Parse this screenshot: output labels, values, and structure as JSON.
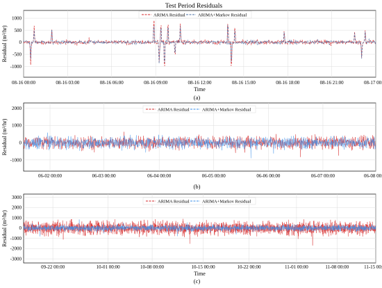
{
  "figure": {
    "title": "Test Period Residuals"
  },
  "chart_data": [
    {
      "type": "line",
      "panel": "(a)",
      "xlabel": "Time",
      "ylabel": "Residual (m³/hr)",
      "x_ticks": [
        "08-16 00:00",
        "08-16 03:00",
        "08-16 06:00",
        "08-16 09:00",
        "08-16 12:00",
        "08-16 15:00",
        "08-16 18:00",
        "08-16 21:00",
        "08-17 00:00"
      ],
      "y_ticks": [
        1000,
        500,
        0,
        -500,
        -1000
      ],
      "ylim": [
        -1450,
        1320
      ],
      "grid": true,
      "legend": "top-center",
      "series": [
        {
          "name": "ARIMA Residual",
          "color": "#d62728",
          "style": "dashed",
          "seed": 11,
          "amp": 120,
          "spikes": [
            [
              0.02,
              -950
            ],
            [
              0.03,
              700
            ],
            [
              0.08,
              550
            ],
            [
              0.37,
              1200
            ],
            [
              0.385,
              -900
            ],
            [
              0.39,
              950
            ],
            [
              0.4,
              -1350
            ],
            [
              0.41,
              1000
            ],
            [
              0.43,
              -700
            ],
            [
              0.445,
              800
            ],
            [
              0.58,
              1050
            ],
            [
              0.59,
              -1350
            ],
            [
              0.6,
              800
            ],
            [
              0.74,
              550
            ],
            [
              0.94,
              450
            ],
            [
              0.96,
              -650
            ],
            [
              0.97,
              500
            ]
          ]
        },
        {
          "name": "ARIMA+Markov Residual",
          "color": "#4a6fa5",
          "style": "dashed",
          "seed": 23,
          "amp": 110,
          "spikes": [
            [
              0.02,
              -700
            ],
            [
              0.03,
              500
            ],
            [
              0.08,
              550
            ],
            [
              0.37,
              900
            ],
            [
              0.385,
              -950
            ],
            [
              0.39,
              800
            ],
            [
              0.4,
              -1150
            ],
            [
              0.41,
              850
            ],
            [
              0.43,
              -600
            ],
            [
              0.445,
              700
            ],
            [
              0.58,
              1000
            ],
            [
              0.59,
              -1100
            ],
            [
              0.6,
              650
            ],
            [
              0.74,
              500
            ],
            [
              0.94,
              400
            ],
            [
              0.96,
              -700
            ],
            [
              0.97,
              450
            ]
          ]
        }
      ]
    },
    {
      "type": "line",
      "panel": "(b)",
      "xlabel": "",
      "ylabel": "Residual (m³/hr)",
      "x_ticks": [
        "06-02 00:00",
        "06-03 00:00",
        "06-04 00:00",
        "06-05 00:00",
        "06-06 00:00",
        "06-07 00:00",
        "06-08 00:00"
      ],
      "y_ticks": [
        2000,
        1000,
        0,
        -1000
      ],
      "ylim": [
        -1650,
        2300
      ],
      "grid": true,
      "legend": "top-center",
      "series": [
        {
          "name": "ARIMA Residual",
          "color": "#d62728",
          "style": "dashed",
          "seed": 5,
          "amp": 520
        },
        {
          "name": "ARIMA+Markov Residual",
          "color": "#3b8fe8",
          "style": "dashed",
          "seed": 9,
          "amp": 480
        }
      ]
    },
    {
      "type": "line",
      "panel": "(c)",
      "xlabel": "Time",
      "ylabel": "Residual (m³/hr)",
      "x_ticks": [
        "09-22 00:00",
        "10-01 00:00",
        "10-08 00:00",
        "10-15 00:00",
        "10-22 00:00",
        "11-01 00:00",
        "11-08 00:00",
        "11-15 00:00"
      ],
      "y_ticks": [
        3000,
        2000,
        1000,
        0,
        -1000,
        -2000,
        -3000
      ],
      "ylim": [
        -3400,
        3300
      ],
      "grid": true,
      "legend": "top-center",
      "series": [
        {
          "name": "ARIMA Residual",
          "color": "#d62728",
          "style": "dashed",
          "seed": 3,
          "amp": 900
        },
        {
          "name": "ARIMA+Markov Residual",
          "color": "#3b8fe8",
          "style": "dashed",
          "seed": 7,
          "amp": 420
        }
      ]
    }
  ]
}
